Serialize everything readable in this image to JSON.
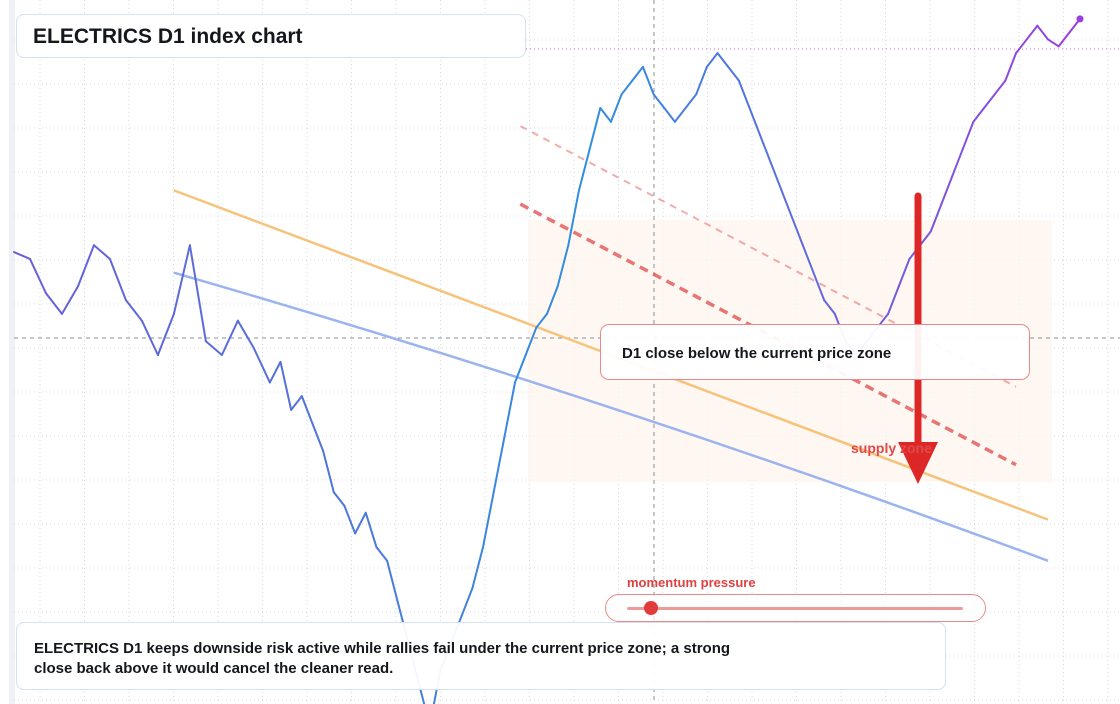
{
  "header": {
    "title": "ELECTRICS D1 index chart"
  },
  "annotations": {
    "zone_note": "D1 close below the current price zone",
    "supply_label": "supply zone",
    "momentum_label": "momentum pressure",
    "momentum_level": 0.07,
    "summary": "ELECTRICS D1 keeps downside risk active while rallies fail under the current price zone; a strong close back above it would cancel the cleaner read."
  },
  "colors": {
    "price_cool": "#2f8fe0",
    "price_mid": "#6a5fd8",
    "price_warm": "#9a3ee0",
    "trend_orange": "#f7c27a",
    "trend_blue": "#9bb3ee",
    "resistance_red": "#e04a4a",
    "arrow_red": "#dd2727"
  },
  "chart_data": {
    "type": "line",
    "title": "ELECTRICS D1 index chart",
    "xlabel": "",
    "ylabel": "",
    "grid": true,
    "legend": "none",
    "x_range": [
      0,
      200
    ],
    "ylim": [
      0,
      100
    ],
    "current_price": 52.0,
    "series": [
      {
        "name": "",
        "x": [
          0,
          3,
          6,
          9,
          12,
          15,
          18,
          21,
          24,
          27,
          30,
          33,
          36,
          39,
          42,
          45,
          48,
          50,
          52,
          54,
          56,
          58,
          60,
          62,
          64,
          66,
          68,
          70,
          72,
          74,
          76,
          78,
          80,
          82,
          84,
          86,
          88,
          90,
          92,
          94,
          96,
          98,
          100,
          102,
          104,
          106,
          108,
          110,
          112,
          114,
          116,
          118,
          120,
          122,
          124,
          126,
          128,
          130,
          132,
          134,
          136,
          138,
          140,
          142,
          144,
          146,
          148,
          150,
          152,
          154,
          156,
          158,
          160,
          162,
          164,
          166,
          168,
          170,
          172,
          174,
          176,
          178,
          180,
          182,
          184,
          186,
          188,
          190,
          192,
          194,
          196,
          198,
          200
        ],
        "values": [
          65,
          64,
          59,
          56,
          60,
          66,
          64,
          58,
          55,
          50,
          56,
          66,
          52,
          50,
          55,
          51,
          46,
          49,
          42,
          44,
          40,
          36,
          30,
          28,
          24,
          27,
          22,
          20,
          14,
          8,
          2,
          -4,
          4,
          8,
          12,
          16,
          22,
          30,
          38,
          46,
          50,
          54,
          56,
          60,
          66,
          74,
          80,
          86,
          84,
          88,
          90,
          92,
          88,
          86,
          84,
          86,
          88,
          92,
          94,
          92,
          90,
          86,
          82,
          78,
          74,
          70,
          66,
          62,
          58,
          56,
          52,
          50,
          52,
          54,
          56,
          60,
          64,
          66,
          68,
          72,
          76,
          80,
          84,
          86,
          88,
          90,
          94,
          96,
          98,
          96,
          95,
          97,
          99
        ]
      }
    ],
    "trendlines": [
      {
        "name": "",
        "from": [
          30,
          74
        ],
        "to": [
          194,
          26
        ]
      },
      {
        "name": "",
        "from": [
          30,
          62
        ],
        "to": [
          194,
          20
        ]
      }
    ],
    "resistance_band": {
      "from": [
        95,
        72
      ],
      "to": [
        188,
        34
      ]
    }
  }
}
